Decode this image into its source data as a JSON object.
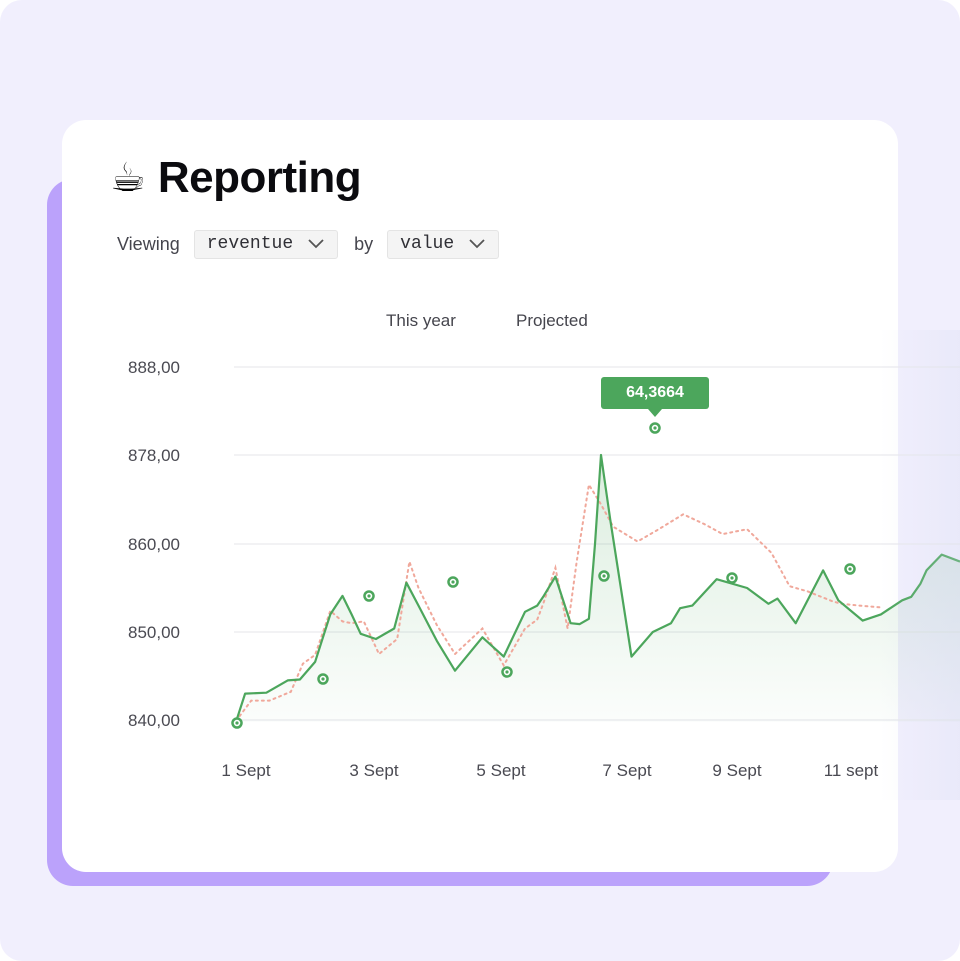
{
  "header": {
    "emoji": "☕",
    "title": "Reporting"
  },
  "filters": {
    "viewing_label": "Viewing",
    "metric_value": "reventue",
    "by_label": "by",
    "group_value": "value"
  },
  "legend": {
    "this_year": "This year",
    "projected": "Projected"
  },
  "tooltip": {
    "value": "64,3664"
  },
  "colors": {
    "background": "#f1effd",
    "accent_shadow": "#bba2fb",
    "this_year_line": "#4ca65c",
    "projected_line": "#f0a89b"
  },
  "chart_data": {
    "type": "line",
    "title": "",
    "xlabel": "",
    "ylabel": "",
    "y_ticks": [
      "840,00",
      "850,00",
      "860,00",
      "878,00",
      "888,00"
    ],
    "x_ticks": [
      "1 Sept",
      "3 Sept",
      "5 Sept",
      "7 Sept",
      "9 Sept",
      "11 sept"
    ],
    "grid": true,
    "tooltip_label": "64,3664",
    "series": [
      {
        "name": "This year",
        "style": "solid",
        "x": [
          1.0,
          1.15,
          1.5,
          1.85,
          2.05,
          2.3,
          2.55,
          2.75,
          2.9,
          3.05,
          3.3,
          3.6,
          3.8,
          4.0,
          4.3,
          4.6,
          5.05,
          5.4,
          5.75,
          5.95,
          6.05,
          6.25,
          6.5,
          6.65,
          6.8,
          6.9,
          7.0,
          7.15,
          7.5,
          7.85,
          8.15,
          8.3,
          8.5,
          8.9,
          9.4,
          9.75,
          9.9,
          10.2,
          10.65,
          10.9,
          11.3,
          11.6,
          11.95,
          12.1,
          12.25,
          12.35,
          12.6,
          12.9
        ],
        "y": [
          839.8,
          843.0,
          843.1,
          844.5,
          844.6,
          846.6,
          852.0,
          854.1,
          852.0,
          849.8,
          849.2,
          850.4,
          855.6,
          853.0,
          849.0,
          845.6,
          849.4,
          847.2,
          852.3,
          853.0,
          854.0,
          856.3,
          851.0,
          850.9,
          851.5,
          860.0,
          878.0,
          865.0,
          847.2,
          850.0,
          851.0,
          852.7,
          853.0,
          856.0,
          855.0,
          853.2,
          853.8,
          851.0,
          857.0,
          853.6,
          851.3,
          852.0,
          853.6,
          854.0,
          855.5,
          857.0,
          858.8,
          858.0
        ]
      },
      {
        "name": "Projected",
        "style": "dotted",
        "x": [
          1.0,
          1.25,
          1.55,
          1.9,
          2.1,
          2.3,
          2.55,
          2.75,
          2.9,
          3.1,
          3.35,
          3.65,
          3.85,
          4.0,
          4.3,
          4.6,
          5.05,
          5.4,
          5.75,
          5.95,
          6.05,
          6.25,
          6.45,
          6.6,
          6.8,
          7.0,
          7.2,
          7.6,
          7.95,
          8.35,
          8.7,
          9.0,
          9.4,
          9.8,
          10.1,
          10.4,
          10.8,
          10.95,
          11.25,
          11.6
        ],
        "y": [
          839.9,
          842.2,
          842.2,
          843.2,
          846.4,
          847.4,
          852.4,
          851.2,
          851.0,
          851.2,
          847.5,
          849.2,
          858.0,
          855.0,
          850.8,
          847.5,
          850.4,
          846.2,
          850.4,
          851.4,
          853.2,
          857.3,
          850.4,
          858.0,
          872.0,
          868.0,
          863.5,
          860.5,
          863.0,
          866.0,
          864.0,
          862.0,
          863.0,
          859.0,
          855.2,
          854.6,
          853.5,
          853.2,
          853.0,
          852.8
        ]
      }
    ],
    "highlighted_points": [
      {
        "series": "This year",
        "x": 1.0,
        "y": 839.8
      },
      {
        "series": "This year",
        "x": 2.55,
        "y": 844.6
      },
      {
        "series": "This year",
        "x": 3.0,
        "y": 854.1
      },
      {
        "series": "This year",
        "x": 5.05,
        "y": 855.6
      },
      {
        "series": "This year",
        "x": 6.05,
        "y": 845.6
      },
      {
        "series": "This year",
        "x": 8.0,
        "y": 856.3
      },
      {
        "series": "This year",
        "x": 9.0,
        "y": 878.0
      },
      {
        "series": "This year",
        "x": 10.95,
        "y": 856.0
      },
      {
        "series": "This year",
        "x": 13.25,
        "y": 857.0
      }
    ]
  }
}
